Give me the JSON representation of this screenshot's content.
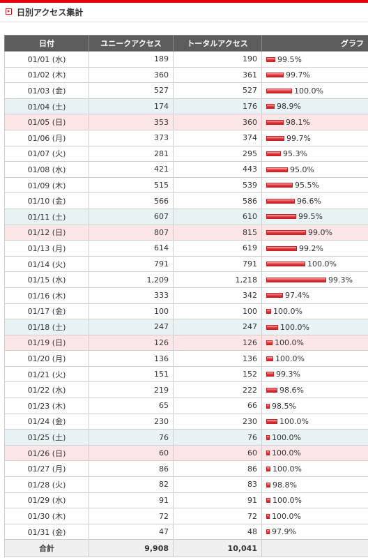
{
  "header": {
    "title": "日別アクセス集計"
  },
  "table": {
    "columns": [
      "日付",
      "ユニークアクセス",
      "トータルアクセス",
      "グラフ"
    ],
    "rows": [
      {
        "date": "01/01 (水)",
        "unique": "189",
        "total": "190",
        "pct": "99.5%",
        "type": "weekday"
      },
      {
        "date": "01/02 (木)",
        "unique": "360",
        "total": "361",
        "pct": "99.7%",
        "type": "weekday"
      },
      {
        "date": "01/03 (金)",
        "unique": "527",
        "total": "527",
        "pct": "100.0%",
        "type": "weekday"
      },
      {
        "date": "01/04 (土)",
        "unique": "174",
        "total": "176",
        "pct": "98.9%",
        "type": "sat"
      },
      {
        "date": "01/05 (日)",
        "unique": "353",
        "total": "360",
        "pct": "98.1%",
        "type": "sun"
      },
      {
        "date": "01/06 (月)",
        "unique": "373",
        "total": "374",
        "pct": "99.7%",
        "type": "weekday"
      },
      {
        "date": "01/07 (火)",
        "unique": "281",
        "total": "295",
        "pct": "95.3%",
        "type": "weekday"
      },
      {
        "date": "01/08 (水)",
        "unique": "421",
        "total": "443",
        "pct": "95.0%",
        "type": "weekday"
      },
      {
        "date": "01/09 (木)",
        "unique": "515",
        "total": "539",
        "pct": "95.5%",
        "type": "weekday"
      },
      {
        "date": "01/10 (金)",
        "unique": "566",
        "total": "586",
        "pct": "96.6%",
        "type": "weekday"
      },
      {
        "date": "01/11 (土)",
        "unique": "607",
        "total": "610",
        "pct": "99.5%",
        "type": "sat"
      },
      {
        "date": "01/12 (日)",
        "unique": "807",
        "total": "815",
        "pct": "99.0%",
        "type": "sun"
      },
      {
        "date": "01/13 (月)",
        "unique": "614",
        "total": "619",
        "pct": "99.2%",
        "type": "weekday"
      },
      {
        "date": "01/14 (火)",
        "unique": "791",
        "total": "791",
        "pct": "100.0%",
        "type": "weekday"
      },
      {
        "date": "01/15 (水)",
        "unique": "1,209",
        "total": "1,218",
        "pct": "99.3%",
        "type": "weekday"
      },
      {
        "date": "01/16 (木)",
        "unique": "333",
        "total": "342",
        "pct": "97.4%",
        "type": "weekday"
      },
      {
        "date": "01/17 (金)",
        "unique": "100",
        "total": "100",
        "pct": "100.0%",
        "type": "weekday"
      },
      {
        "date": "01/18 (土)",
        "unique": "247",
        "total": "247",
        "pct": "100.0%",
        "type": "sat"
      },
      {
        "date": "01/19 (日)",
        "unique": "126",
        "total": "126",
        "pct": "100.0%",
        "type": "sun"
      },
      {
        "date": "01/20 (月)",
        "unique": "136",
        "total": "136",
        "pct": "100.0%",
        "type": "weekday"
      },
      {
        "date": "01/21 (火)",
        "unique": "151",
        "total": "152",
        "pct": "99.3%",
        "type": "weekday"
      },
      {
        "date": "01/22 (水)",
        "unique": "219",
        "total": "222",
        "pct": "98.6%",
        "type": "weekday"
      },
      {
        "date": "01/23 (木)",
        "unique": "65",
        "total": "66",
        "pct": "98.5%",
        "type": "weekday"
      },
      {
        "date": "01/24 (金)",
        "unique": "230",
        "total": "230",
        "pct": "100.0%",
        "type": "weekday"
      },
      {
        "date": "01/25 (土)",
        "unique": "76",
        "total": "76",
        "pct": "100.0%",
        "type": "sat"
      },
      {
        "date": "01/26 (日)",
        "unique": "60",
        "total": "60",
        "pct": "100.0%",
        "type": "sun"
      },
      {
        "date": "01/27 (月)",
        "unique": "86",
        "total": "86",
        "pct": "100.0%",
        "type": "weekday"
      },
      {
        "date": "01/28 (火)",
        "unique": "82",
        "total": "83",
        "pct": "98.8%",
        "type": "weekday"
      },
      {
        "date": "01/29 (水)",
        "unique": "91",
        "total": "91",
        "pct": "100.0%",
        "type": "weekday"
      },
      {
        "date": "01/30 (木)",
        "unique": "72",
        "total": "72",
        "pct": "100.0%",
        "type": "weekday"
      },
      {
        "date": "01/31 (金)",
        "unique": "47",
        "total": "48",
        "pct": "97.9%",
        "type": "weekday"
      }
    ],
    "totals": {
      "label": "合計",
      "unique": "9,908",
      "total": "10,041"
    }
  },
  "colors": {
    "accent": "#e3000b",
    "header_bg": "#5d5d5d",
    "saturday_bg": "#e9f3f5",
    "sunday_bg": "#fde6e8",
    "bar": "#dc2f35"
  }
}
